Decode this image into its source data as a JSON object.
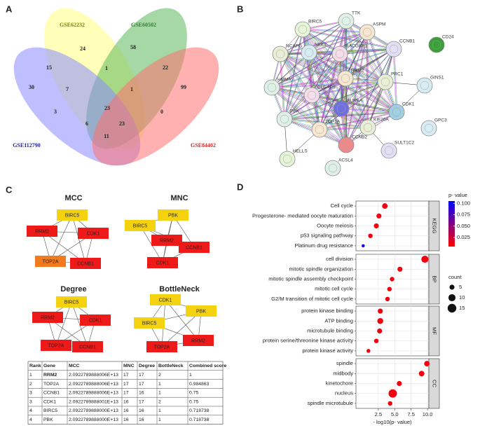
{
  "panel_labels": [
    "A",
    "B",
    "C",
    "D"
  ],
  "venn": {
    "sets": [
      {
        "name": "GSE62232",
        "color": "#ffff80",
        "text_color": "#808000"
      },
      {
        "name": "GSE60502",
        "color": "#5cb85c",
        "text_color": "#2e7d32"
      },
      {
        "name": "GSE112790",
        "color": "#8a8aff",
        "text_color": "#2222aa"
      },
      {
        "name": "GSE84402",
        "color": "#ff7070",
        "text_color": "#dd2222"
      }
    ],
    "counts": [
      24,
      58,
      15,
      1,
      22,
      30,
      7,
      1,
      99,
      23,
      3,
      0,
      6,
      23,
      11
    ]
  },
  "network": {
    "nodes": [
      "BIRC5",
      "TTK",
      "ASPM",
      "NCAPG",
      "NEK2",
      "RACGAP1",
      "CCNB1",
      "CD24",
      "HMMR",
      "RRM2",
      "PRC1",
      "GINS1",
      "DLGAP5",
      "AURKA",
      "CDK1",
      "PBK",
      "TOP2A",
      "KIF20A",
      "GPC3",
      "CCNB2",
      "SULT1C2",
      "HELLS",
      "ACSL4"
    ]
  },
  "hub_networks": [
    {
      "title": "MCC",
      "nodes": [
        {
          "label": "BIRC5",
          "color": "#f5d20f"
        },
        {
          "label": "RRM2",
          "color": "#ee1a1a"
        },
        {
          "label": "CDK1",
          "color": "#ee1a1a"
        },
        {
          "label": "TOP2A",
          "color": "#f47b1d"
        },
        {
          "label": "CCNB1",
          "color": "#ee1a1a"
        }
      ]
    },
    {
      "title": "MNC",
      "nodes": [
        {
          "label": "PBK",
          "color": "#f5d20f"
        },
        {
          "label": "BIRC5",
          "color": "#f5d20f"
        },
        {
          "label": "RRM2",
          "color": "#ee1a1a"
        },
        {
          "label": "CCNB1",
          "color": "#ee1a1a"
        },
        {
          "label": "CDK1",
          "color": "#ee1a1a"
        }
      ]
    },
    {
      "title": "Degree",
      "nodes": [
        {
          "label": "BIRC5",
          "color": "#f5d20f"
        },
        {
          "label": "RRM2",
          "color": "#ee1a1a"
        },
        {
          "label": "CDK1",
          "color": "#ee1a1a"
        },
        {
          "label": "TOP2A",
          "color": "#ee1a1a"
        },
        {
          "label": "CCNB1",
          "color": "#ee1a1a"
        }
      ]
    },
    {
      "title": "BottleNeck",
      "nodes": [
        {
          "label": "CDK1",
          "color": "#f5d20f"
        },
        {
          "label": "PBK",
          "color": "#f5d20f"
        },
        {
          "label": "BIRC5",
          "color": "#f5d20f"
        },
        {
          "label": "RRM2",
          "color": "#ee1a1a"
        },
        {
          "label": "TOP2A",
          "color": "#ee1a1a"
        }
      ]
    }
  ],
  "table": {
    "header": [
      "Rank",
      "Gene",
      "MCC",
      "MNC",
      "Degree",
      "BottleNeck",
      "Combined score"
    ],
    "rows": [
      [
        "1",
        "RRM2",
        "2.0922789888006E+13",
        "17",
        "17",
        "2",
        "1"
      ],
      [
        "2",
        "TOP2A",
        "2.0922789888006E+13",
        "17",
        "17",
        "1",
        "0.984863"
      ],
      [
        "3",
        "CCNB1",
        "2.0922789888006E+13",
        "17",
        "16",
        "1",
        "0.75"
      ],
      [
        "3",
        "CDK1",
        "2.0922789888001E+13",
        "16",
        "17",
        "2",
        "0.75"
      ],
      [
        "4",
        "BIRC5",
        "2.0922789888000E+13",
        "16",
        "16",
        "1",
        "0.718738"
      ],
      [
        "4",
        "PBK",
        "2.0922789888000E+13",
        "16",
        "16",
        "1",
        "0.718738"
      ]
    ]
  },
  "chart_data": {
    "type": "dot",
    "xlabel": "- log10(p- value)",
    "xlim": [
      -0.9,
      10.2
    ],
    "xticks": [
      2.5,
      {
        "value": 5,
        "label": "5.0"
      },
      7.5,
      {
        "value": 10,
        "label": "10.0"
      }
    ],
    "colorbar_title": "p- value",
    "colorlim": [
      0.005,
      0.105
    ],
    "colorticks": [
      0.025,
      {
        "value": 0.05,
        "label": "0.050"
      },
      0.075,
      {
        "value": 0.1,
        "label": "0.100"
      }
    ],
    "color_low": "#ff0000",
    "color_high": "#0000ff",
    "size_title": "count",
    "size_ticks": [
      5,
      10,
      15
    ],
    "grid": true,
    "facets": [
      {
        "name": "KEGG",
        "categories": [
          "Cell cycle",
          "Progesterone- mediated oocyte maturation",
          "Oocyte meiosis",
          "p53 signaling pathway",
          "Platinum drug resistance"
        ],
        "x": [
          3.5,
          2.6,
          2.2,
          1.3,
          0.2
        ],
        "p_value": [
          0.01,
          0.01,
          0.01,
          0.012,
          0.1
        ],
        "count": [
          6,
          5,
          5,
          4,
          2
        ]
      },
      {
        "name": "BP",
        "categories": [
          "cell division",
          "mitotic spindle organization",
          "mitotic spindle assembly checkpoint",
          "mitotic cell cycle",
          "G2/M transition of mitotic cell cycle"
        ],
        "x": [
          9.6,
          5.8,
          4.6,
          4.2,
          3.9
        ],
        "p_value": [
          0.01,
          0.01,
          0.01,
          0.01,
          0.01
        ],
        "count": [
          10,
          5,
          4,
          4,
          4
        ]
      },
      {
        "name": "MF",
        "categories": [
          "protein kinase binding",
          "ATP binding",
          "microtubule binding",
          "protein serine/threonine kinase activity",
          "protein kinase activity"
        ],
        "x": [
          2.8,
          2.8,
          2.7,
          2.2,
          1.0
        ],
        "p_value": [
          0.01,
          0.01,
          0.01,
          0.01,
          0.012
        ],
        "count": [
          5,
          7,
          5,
          4,
          3
        ]
      },
      {
        "name": "CC",
        "categories": [
          "spindle",
          "midbody",
          "kinetochore",
          "nucleus",
          "spindle microtubule"
        ],
        "x": [
          9.9,
          9.1,
          5.7,
          4.7,
          4.3
        ],
        "p_value": [
          0.01,
          0.01,
          0.01,
          0.01,
          0.01
        ],
        "count": [
          6,
          6,
          5,
          14,
          4
        ]
      }
    ]
  }
}
